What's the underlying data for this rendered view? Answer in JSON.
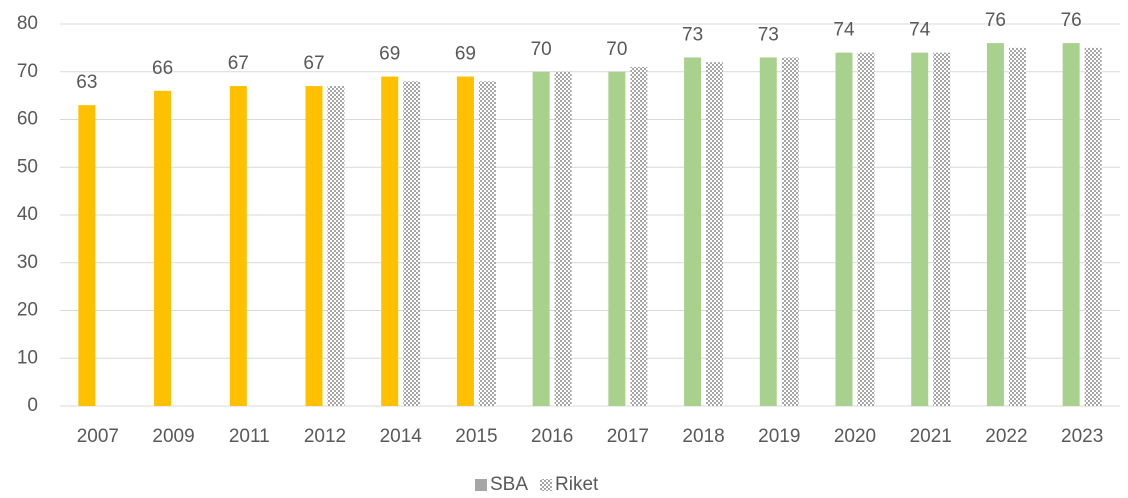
{
  "chart_data": {
    "type": "bar",
    "categories": [
      "2007",
      "2009",
      "2011",
      "2012",
      "2014",
      "2015",
      "2016",
      "2017",
      "2018",
      "2019",
      "2020",
      "2021",
      "2022",
      "2023"
    ],
    "series": [
      {
        "name": "SBA",
        "color": "#a6a6a6",
        "colors": [
          "#ffc000",
          "#ffc000",
          "#ffc000",
          "#ffc000",
          "#ffc000",
          "#ffc000",
          "#a9d18e",
          "#a9d18e",
          "#a9d18e",
          "#a9d18e",
          "#a9d18e",
          "#a9d18e",
          "#a9d18e",
          "#a9d18e"
        ],
        "data_labels": true,
        "values": [
          63,
          66,
          67,
          67,
          69,
          69,
          70,
          70,
          73,
          73,
          74,
          74,
          76,
          76
        ]
      },
      {
        "name": "Riket",
        "color": "#a6a6a6",
        "pattern": "dots",
        "data_labels": false,
        "values": [
          null,
          null,
          null,
          67,
          68,
          68,
          70,
          71,
          72,
          73,
          74,
          74,
          75,
          75
        ]
      }
    ],
    "ylim": [
      0,
      80
    ],
    "yticks": [
      0,
      10,
      20,
      30,
      40,
      50,
      60,
      70,
      80
    ],
    "grid": true,
    "legend": "bottom"
  }
}
